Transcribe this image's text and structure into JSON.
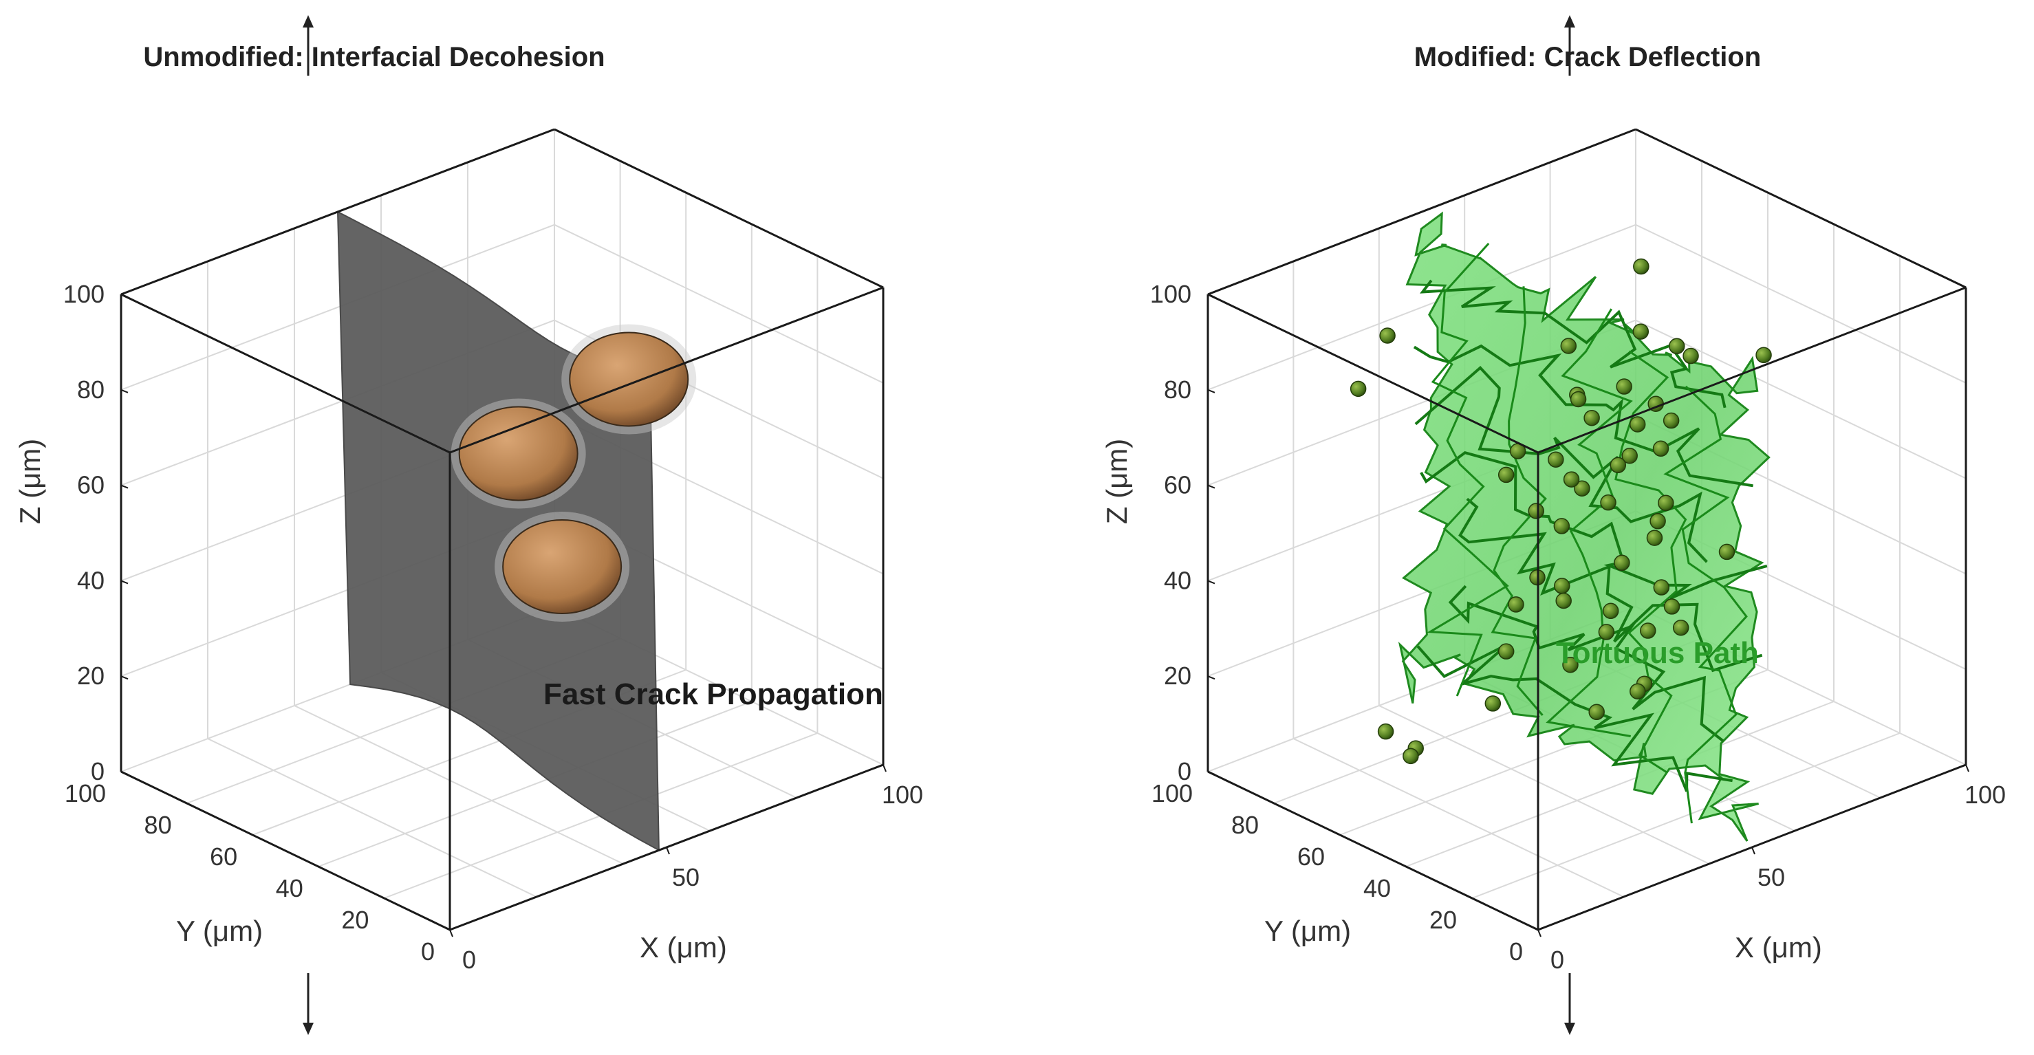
{
  "chart_data": [
    {
      "type": "scatter",
      "title": "Unmodified:  Interfacial  Decohesion",
      "xlabel": "X  (μm)",
      "ylabel": "Y  (μm)",
      "zlabel": "Z  (μm)",
      "xlim": [
        0,
        100
      ],
      "ylim": [
        0,
        100
      ],
      "zlim": [
        0,
        100
      ],
      "xticks": [
        "0",
        "50",
        "100"
      ],
      "yticks": [
        "0",
        "20",
        "40",
        "60",
        "80",
        "100"
      ],
      "zticks": [
        "0",
        "20",
        "40",
        "60",
        "80",
        "100"
      ],
      "grid": true,
      "surface": {
        "type": "planar crack surface",
        "color": "#5c5c5c",
        "x": 50
      },
      "particles": {
        "color": "#b77a45",
        "points": [
          [
            58,
            22,
            88
          ],
          [
            35,
            12,
            60
          ],
          [
            75,
            78,
            48
          ]
        ]
      },
      "annotation": "Fast  Crack  Propagation",
      "annotation_color": "#1a1a1a"
    },
    {
      "type": "scatter",
      "title": "Modified:  Crack  Deflection",
      "xlabel": "X  (μm)",
      "ylabel": "Y  (μm)",
      "zlabel": "Z  (μm)",
      "xlim": [
        0,
        100
      ],
      "ylim": [
        0,
        100
      ],
      "zlim": [
        0,
        100
      ],
      "xticks": [
        "0",
        "50",
        "100"
      ],
      "yticks": [
        "0",
        "20",
        "40",
        "60",
        "80",
        "100"
      ],
      "zticks": [
        "0",
        "20",
        "40",
        "60",
        "80",
        "100"
      ],
      "grid": true,
      "surface": {
        "type": "tortuous crack surface",
        "color": "#6fd36f",
        "x": 50
      },
      "particles": {
        "color": "#4f7a1f",
        "points": [
          [
            12,
            70,
            86
          ],
          [
            25,
            78,
            90
          ],
          [
            62,
            12,
            95
          ],
          [
            28,
            3,
            52
          ],
          [
            35,
            8,
            57
          ],
          [
            18,
            30,
            52
          ],
          [
            35,
            55,
            28
          ],
          [
            10,
            50,
            18
          ],
          [
            15,
            58,
            12
          ],
          [
            30,
            85,
            3
          ],
          [
            45,
            72,
            8
          ],
          [
            60,
            60,
            5
          ],
          [
            70,
            70,
            15
          ],
          [
            55,
            28,
            35
          ],
          [
            82,
            85,
            33
          ],
          [
            95,
            92,
            62
          ],
          [
            92,
            88,
            78
          ],
          [
            40,
            40,
            85
          ],
          [
            48,
            50,
            78
          ],
          [
            55,
            55,
            70
          ],
          [
            60,
            50,
            62
          ],
          [
            65,
            60,
            55
          ],
          [
            52,
            42,
            45
          ],
          [
            44,
            35,
            40
          ],
          [
            50,
            65,
            35
          ],
          [
            58,
            68,
            42
          ],
          [
            70,
            52,
            48
          ],
          [
            75,
            60,
            55
          ],
          [
            80,
            68,
            60
          ],
          [
            62,
            40,
            72
          ],
          [
            45,
            45,
            62
          ],
          [
            38,
            42,
            45
          ],
          [
            42,
            55,
            55
          ],
          [
            66,
            45,
            30
          ],
          [
            72,
            58,
            38
          ],
          [
            55,
            35,
            55
          ],
          [
            50,
            55,
            20
          ],
          [
            60,
            70,
            25
          ],
          [
            68,
            78,
            45
          ],
          [
            78,
            75,
            62
          ],
          [
            85,
            80,
            50
          ],
          [
            30,
            45,
            75
          ],
          [
            35,
            55,
            65
          ],
          [
            48,
            30,
            25
          ],
          [
            58,
            45,
            15
          ],
          [
            75,
            40,
            40
          ],
          [
            82,
            60,
            72
          ],
          [
            88,
            72,
            68
          ],
          [
            65,
            75,
            75
          ],
          [
            52,
            62,
            60
          ]
        ]
      },
      "annotation": "Tortuous  Path",
      "annotation_color": "#2a9d2a"
    }
  ]
}
